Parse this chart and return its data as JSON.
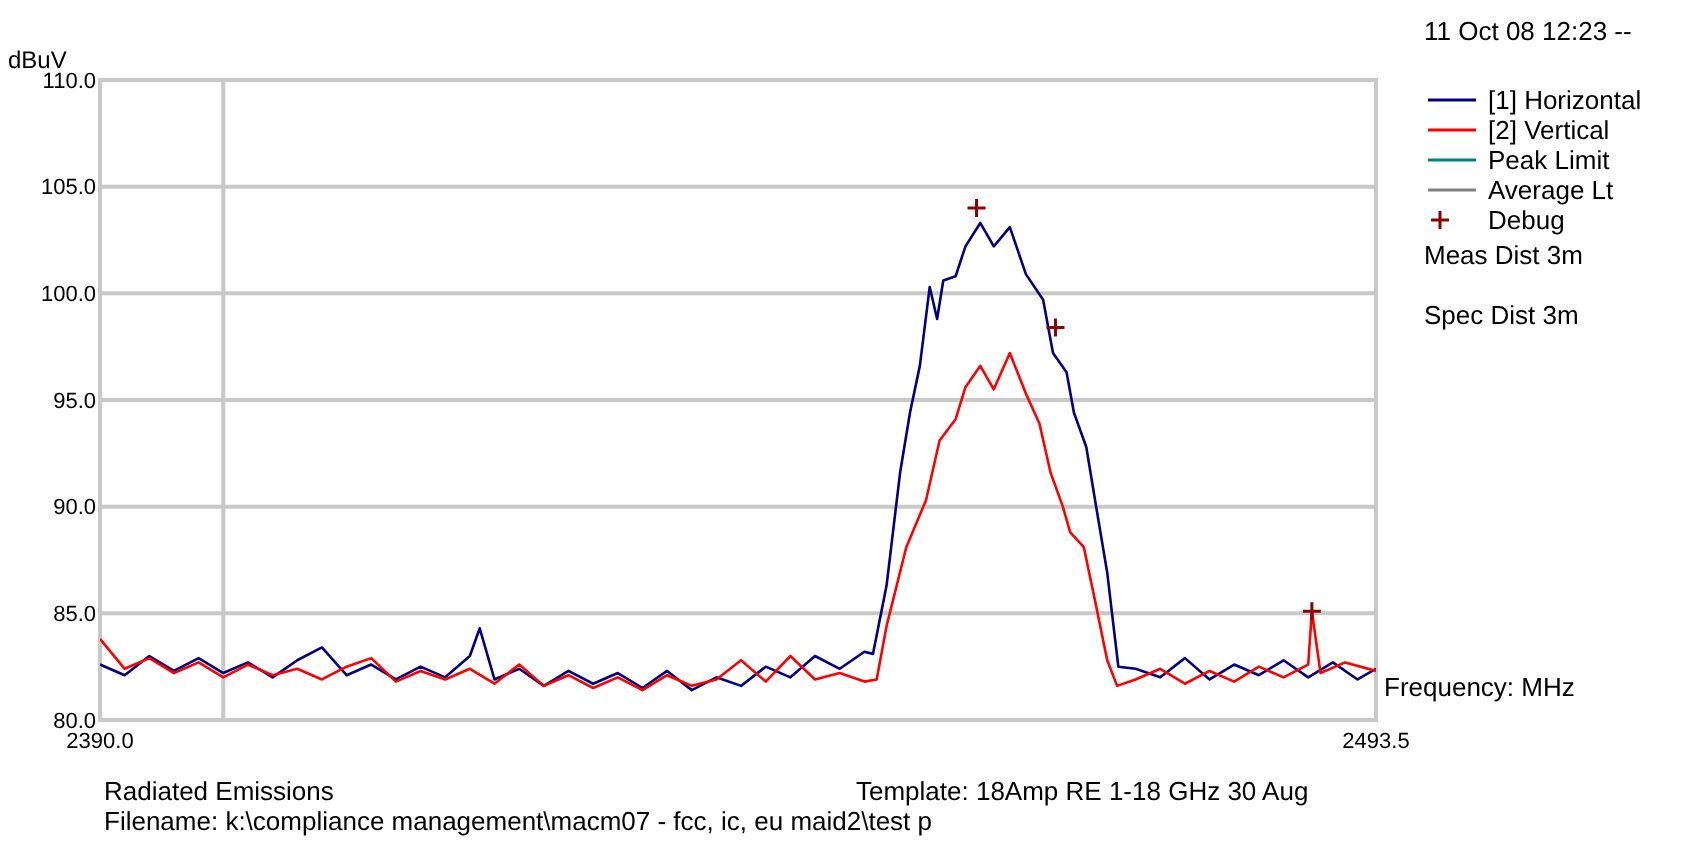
{
  "chart_data": {
    "type": "line",
    "ylabel": "dBuV",
    "xlabel": "Frequency: MHz",
    "xlim": [
      2390,
      2493.5
    ],
    "ylim": [
      80,
      110
    ],
    "xticks": [
      {
        "value": 2390,
        "label": "2390.0"
      },
      {
        "value": 2400,
        "label": null
      },
      {
        "value": 2493.5,
        "label": "2493.5"
      }
    ],
    "yticks": [
      {
        "value": 80,
        "label": "80.0"
      },
      {
        "value": 85,
        "label": "85.0"
      },
      {
        "value": 90,
        "label": "90.0"
      },
      {
        "value": 95,
        "label": "95.0"
      },
      {
        "value": 100,
        "label": "100.0"
      },
      {
        "value": 105,
        "label": "105.0"
      },
      {
        "value": 110,
        "label": "110.0"
      }
    ],
    "grid": true,
    "legend": "right",
    "series": [
      {
        "name": "[1] Horizontal",
        "color": "#000080",
        "x": [
          2390,
          2392,
          2394,
          2396,
          2398,
          2400,
          2402,
          2404,
          2406,
          2408,
          2410,
          2412,
          2414,
          2416,
          2418,
          2420,
          2420.8,
          2422,
          2424,
          2426,
          2428,
          2430,
          2432,
          2434,
          2436,
          2438,
          2440,
          2442,
          2444,
          2446,
          2448,
          2450,
          2452,
          2452.7,
          2453.8,
          2454.9,
          2455.7,
          2456.5,
          2457.3,
          2457.9,
          2458.4,
          2459.4,
          2460.2,
          2461.4,
          2462.5,
          2463.8,
          2465.1,
          2466.5,
          2467.3,
          2468.4,
          2469,
          2470,
          2470.8,
          2471.7,
          2472.6,
          2474,
          2476,
          2478,
          2480,
          2482,
          2484,
          2486,
          2488,
          2490,
          2492,
          2493.5
        ],
        "values": [
          82.6,
          82.1,
          83,
          82.3,
          82.9,
          82.2,
          82.7,
          82,
          82.8,
          83.4,
          82.1,
          82.6,
          81.9,
          82.5,
          82,
          83,
          84.3,
          81.9,
          82.4,
          81.6,
          82.3,
          81.7,
          82.2,
          81.5,
          82.3,
          81.4,
          82,
          81.6,
          82.5,
          82,
          83,
          82.4,
          83.2,
          83.1,
          86.3,
          91.6,
          94.4,
          96.6,
          100.3,
          98.8,
          100.6,
          100.8,
          102.2,
          103.3,
          102.2,
          103.1,
          100.9,
          99.7,
          97.2,
          96.3,
          94.4,
          92.8,
          90,
          86.9,
          82.5,
          82.4,
          82,
          82.9,
          81.9,
          82.6,
          82.1,
          82.8,
          82,
          82.7,
          81.9,
          82.4
        ]
      },
      {
        "name": "[2] Vertical",
        "color": "#ff0000",
        "x": [
          2390,
          2392,
          2394,
          2396,
          2398,
          2400,
          2402,
          2404,
          2406,
          2408,
          2410,
          2412,
          2414,
          2416,
          2418,
          2420,
          2422,
          2424,
          2426,
          2428,
          2430,
          2432,
          2434,
          2436,
          2438,
          2440,
          2442,
          2444,
          2446,
          2448,
          2450,
          2452,
          2453,
          2453.8,
          2455.4,
          2457,
          2458.1,
          2459.4,
          2460.2,
          2461.4,
          2462.5,
          2463.8,
          2465.1,
          2466.2,
          2467.1,
          2468.1,
          2468.7,
          2469.8,
          2470.6,
          2471.7,
          2472.5,
          2474,
          2476,
          2478,
          2480,
          2482,
          2484,
          2486,
          2488,
          2488.3,
          2489,
          2491,
          2493.5
        ],
        "values": [
          83.8,
          82.4,
          82.9,
          82.2,
          82.7,
          82,
          82.6,
          82.1,
          82.4,
          81.9,
          82.5,
          82.9,
          81.8,
          82.3,
          81.9,
          82.4,
          81.7,
          82.6,
          81.6,
          82.1,
          81.5,
          82,
          81.4,
          82.1,
          81.6,
          81.9,
          82.8,
          81.8,
          83,
          81.9,
          82.2,
          81.8,
          81.9,
          84.4,
          88.1,
          90.3,
          93.1,
          94.1,
          95.6,
          96.6,
          95.5,
          97.2,
          95.3,
          93.9,
          91.6,
          90,
          88.8,
          88.1,
          85.9,
          82.8,
          81.6,
          81.9,
          82.4,
          81.7,
          82.3,
          81.8,
          82.5,
          82,
          82.6,
          85.1,
          82.2,
          82.7,
          82.3
        ]
      },
      {
        "name": "Peak Limit",
        "color": "#008080"
      },
      {
        "name": "Average Lt",
        "color": "#808080"
      },
      {
        "name": "Debug",
        "color": "#8b0000",
        "type": "scatter",
        "marker": "cross",
        "x": [
          2461.1,
          2467.5,
          2488.3
        ],
        "values": [
          104,
          98.4,
          85.1
        ]
      }
    ],
    "annotations": [
      "11 Oct 08 12:23 --",
      "Meas Dist 3m",
      "Spec Dist 3m",
      "Radiated Emissions",
      "Template: 18Amp RE 1-18 GHz 30 Aug",
      "Filename: k:\\compliance management\\macm07 - fcc, ic, eu maid2\\test p"
    ]
  }
}
